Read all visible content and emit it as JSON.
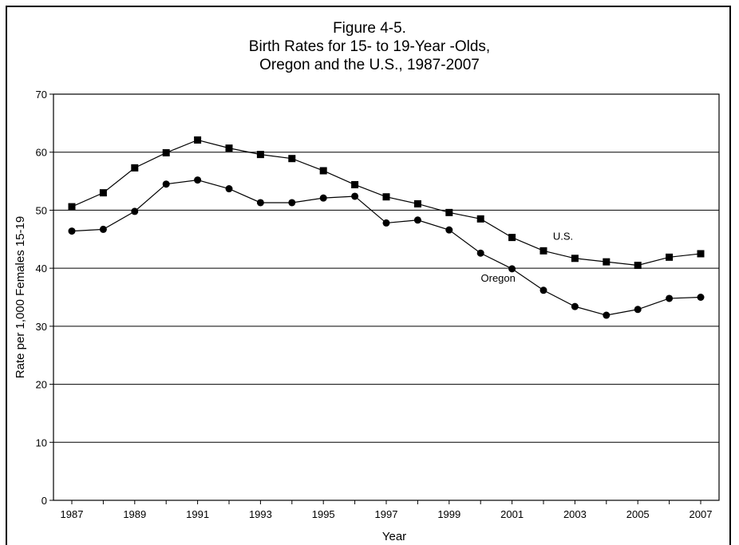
{
  "chart_data": {
    "type": "line",
    "title_lines": [
      "Figure 4-5.",
      "Birth Rates for 15- to 19-Year -Olds,",
      "Oregon and the U.S., 1987-2007"
    ],
    "xlabel": "Year",
    "ylabel": "Rate per 1,000 Females 15-19",
    "ylim": [
      0,
      70
    ],
    "yticks": [
      "0",
      "10",
      "20",
      "30",
      "40",
      "50",
      "60",
      "70"
    ],
    "xtick_labels": [
      "1987",
      "1989",
      "1991",
      "1993",
      "1995",
      "1997",
      "1999",
      "2001",
      "2003",
      "2005",
      "2007"
    ],
    "x": [
      1987,
      1988,
      1989,
      1990,
      1991,
      1992,
      1993,
      1994,
      1995,
      1996,
      1997,
      1998,
      1999,
      2000,
      2001,
      2002,
      2003,
      2004,
      2005,
      2006,
      2007
    ],
    "grid": true,
    "series": [
      {
        "name": "U.S.",
        "marker": "square",
        "values": [
          50.6,
          53.0,
          57.3,
          59.9,
          62.1,
          60.7,
          59.6,
          58.9,
          56.8,
          54.4,
          52.3,
          51.1,
          49.6,
          48.5,
          45.3,
          43.0,
          41.7,
          41.1,
          40.5,
          41.9,
          42.5
        ]
      },
      {
        "name": "Oregon",
        "marker": "circle",
        "values": [
          46.4,
          46.7,
          49.8,
          54.5,
          55.2,
          53.7,
          51.3,
          51.3,
          52.1,
          52.4,
          47.8,
          48.3,
          46.6,
          42.6,
          39.9,
          36.2,
          33.4,
          31.9,
          32.9,
          34.8,
          35.0
        ]
      }
    ]
  }
}
